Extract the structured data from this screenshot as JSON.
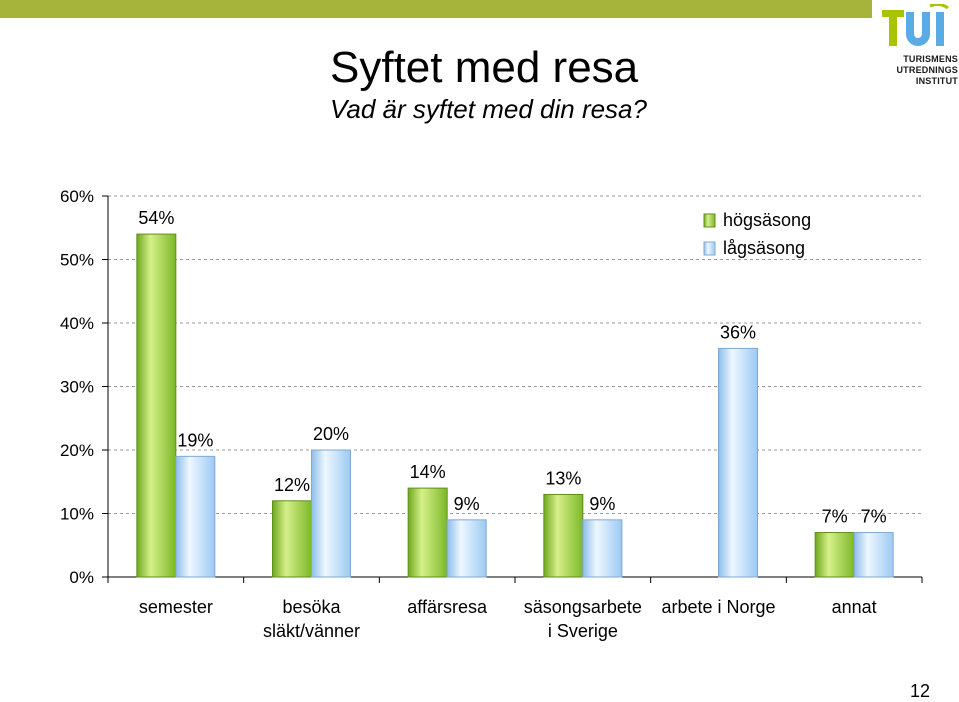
{
  "header": {
    "title": "Syftet med resa",
    "subtitle": "Vad är syftet med din resa?"
  },
  "logo": {
    "mark": "TUI",
    "lines": [
      "TURISMENS",
      "UTREDNINGS",
      "INSTITUT"
    ]
  },
  "colors": {
    "top_bar": "#a6b43c",
    "logo_green": "#a8c400",
    "logo_blue": "#5aaae6",
    "series_hogsasong": "#8bc53f",
    "series_lagsasong": "#a9d2f5"
  },
  "chart_data": {
    "type": "bar",
    "categories": [
      "semester",
      "besöka\nsläkt/vänner",
      "affärsresa",
      "säsongsarbete\ni Sverige",
      "arbete i Norge",
      "annat"
    ],
    "series": [
      {
        "name": "högsäsong",
        "values": [
          54,
          12,
          14,
          13,
          null,
          7
        ]
      },
      {
        "name": "lågsäsong",
        "values": [
          19,
          20,
          9,
          9,
          36,
          7
        ]
      }
    ],
    "value_labels": [
      [
        "54%",
        "12%",
        "14%",
        "13%",
        null,
        "7%"
      ],
      [
        "19%",
        "20%",
        "9%",
        "9%",
        "36%",
        "7%"
      ]
    ],
    "ylim": [
      0,
      60
    ],
    "yticks": [
      0,
      10,
      20,
      30,
      40,
      50,
      60
    ],
    "ytick_labels": [
      "0%",
      "10%",
      "20%",
      "30%",
      "40%",
      "50%",
      "60%"
    ],
    "grid": "horizontal-dashed",
    "legend": "top-right"
  },
  "page_number": "12"
}
